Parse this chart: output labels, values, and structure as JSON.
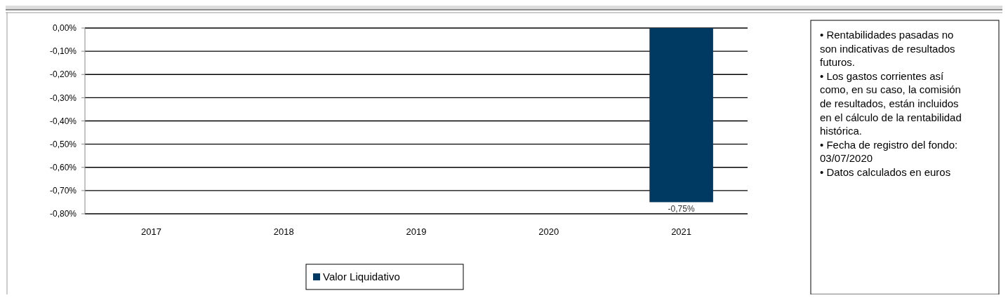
{
  "chart_data": {
    "type": "bar",
    "categories": [
      "2017",
      "2018",
      "2019",
      "2020",
      "2021"
    ],
    "series": [
      {
        "name": "Valor Liquidativo",
        "color": "#003a63",
        "values": [
          null,
          null,
          null,
          null,
          -0.75
        ],
        "value_labels": [
          null,
          null,
          null,
          null,
          "-0,75%"
        ]
      }
    ],
    "ylim": [
      -0.8,
      0
    ],
    "yticks": [
      {
        "value": 0,
        "label": "0,00%"
      },
      {
        "value": -0.1,
        "label": "-0,10%"
      },
      {
        "value": -0.2,
        "label": "-0,20%"
      },
      {
        "value": -0.3,
        "label": "-0,30%"
      },
      {
        "value": -0.4,
        "label": "-0,40%"
      },
      {
        "value": -0.5,
        "label": "-0,50%"
      },
      {
        "value": -0.6,
        "label": "-0,60%"
      },
      {
        "value": -0.7,
        "label": "-0,70%"
      },
      {
        "value": -0.8,
        "label": "-0,80%"
      }
    ],
    "grid": "y",
    "legend": "bottom",
    "annotations": [
      "• Rentabilidades pasadas no son indicativas de resultados futuros.",
      "• Los gastos corrientes así como, en su caso, la comisión de resultados, están incluidos en el cálculo de la rentabilidad histórica.",
      "• Fecha de registro del fondo: 03/07/2020",
      "• Datos calculados en euros"
    ]
  }
}
